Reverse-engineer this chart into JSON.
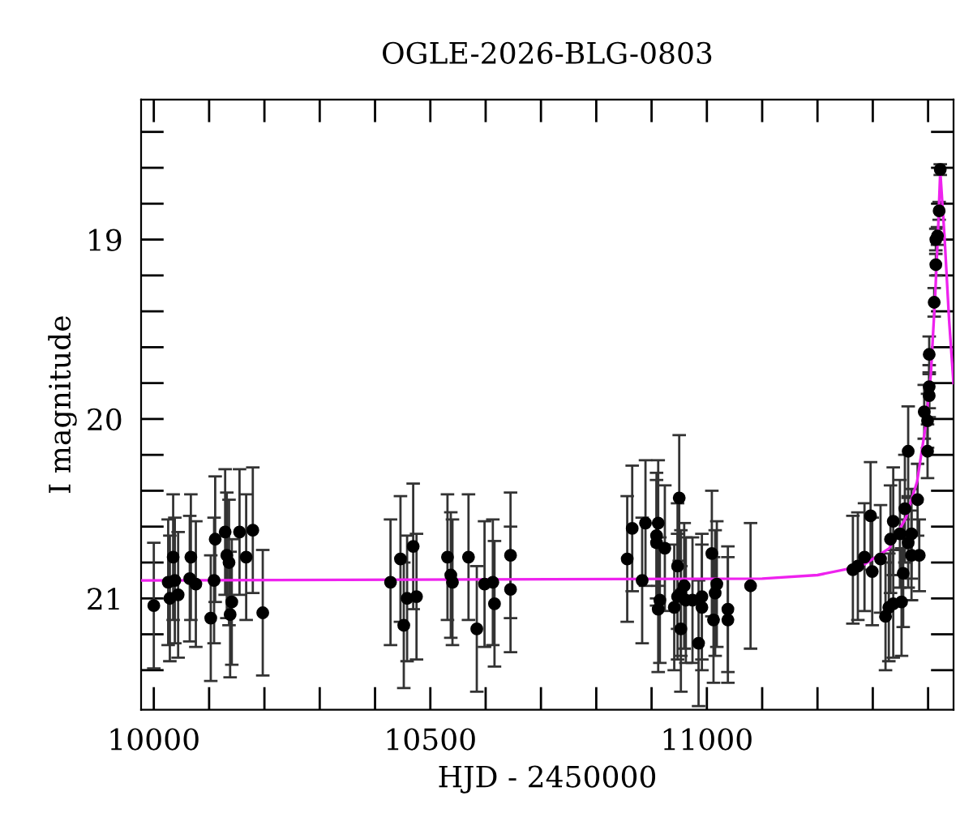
{
  "chart_data": {
    "type": "scatter",
    "title": "OGLE-2026-BLG-0803",
    "xlabel": "HJD - 2450000",
    "ylabel": "I magnitude",
    "xlim": [
      9977,
      11446
    ],
    "ylim": [
      21.62,
      18.22
    ],
    "xticks": [
      {
        "value": 10000,
        "label": "10000"
      },
      {
        "value": 10100,
        "label": null
      },
      {
        "value": 10200,
        "label": null
      },
      {
        "value": 10300,
        "label": null
      },
      {
        "value": 10400,
        "label": null
      },
      {
        "value": 10500,
        "label": "10500"
      },
      {
        "value": 10600,
        "label": null
      },
      {
        "value": 10700,
        "label": null
      },
      {
        "value": 10800,
        "label": null
      },
      {
        "value": 10900,
        "label": null
      },
      {
        "value": 11000,
        "label": "11000"
      },
      {
        "value": 11100,
        "label": null
      },
      {
        "value": 11200,
        "label": null
      },
      {
        "value": 11300,
        "label": null
      },
      {
        "value": 11400,
        "label": null
      }
    ],
    "yticks": [
      {
        "value": 18.4,
        "label": null
      },
      {
        "value": 18.6,
        "label": null
      },
      {
        "value": 18.8,
        "label": null
      },
      {
        "value": 19,
        "label": "19"
      },
      {
        "value": 19.2,
        "label": null
      },
      {
        "value": 19.4,
        "label": null
      },
      {
        "value": 19.6,
        "label": null
      },
      {
        "value": 19.8,
        "label": null
      },
      {
        "value": 20,
        "label": "20"
      },
      {
        "value": 20.2,
        "label": null
      },
      {
        "value": 20.4,
        "label": null
      },
      {
        "value": 20.6,
        "label": null
      },
      {
        "value": 20.8,
        "label": null
      },
      {
        "value": 21,
        "label": "21"
      },
      {
        "value": 21.2,
        "label": null
      },
      {
        "value": 21.4,
        "label": null
      }
    ],
    "grid": false,
    "legend": false,
    "series": [
      {
        "type": "line",
        "color": "#ee22ee",
        "marker": "none",
        "line_style": "solid",
        "x": [
          9977,
          11100,
          11200,
          11280,
          11330,
          11360,
          11380,
          11395,
          11405,
          11413,
          11418,
          11422,
          11430,
          11438,
          11446
        ],
        "values": [
          20.9,
          20.89,
          20.87,
          20.82,
          20.72,
          20.55,
          20.35,
          20.05,
          19.75,
          19.3,
          18.95,
          18.62,
          19.0,
          19.45,
          19.8
        ]
      },
      {
        "color": "#000000",
        "marker": "circle",
        "x": [
          10000,
          10026,
          10029,
          10035,
          10038,
          10044,
          10065,
          10067,
          10076,
          10103,
          10109,
          10111,
          10129,
          10132,
          10136,
          10138,
          10141,
          10155,
          10167,
          10179,
          10197,
          10428,
          10446,
          10452,
          10458,
          10469,
          10475,
          10531,
          10537,
          10540,
          10569,
          10584,
          10598,
          10613,
          10616,
          10645,
          10645,
          10856,
          10865,
          10883,
          10889,
          10909,
          10909,
          10912,
          10912,
          10915,
          10924,
          10941,
          10947,
          10947,
          10950,
          10953,
          10953,
          10959,
          10962,
          10974,
          10985,
          10991,
          10991,
          11009,
          11012,
          11015,
          11018,
          11038,
          11038,
          11079,
          11264,
          11273,
          11285,
          11296,
          11299,
          11314,
          11323,
          11329,
          11332,
          11337,
          11337,
          11349,
          11352,
          11355,
          11358,
          11364,
          11364,
          11370,
          11370,
          11381,
          11384,
          11393,
          11399,
          11399,
          11402,
          11402,
          11402,
          11411,
          11414,
          11414,
          11417,
          11420,
          11422
        ],
        "values": [
          21.04,
          20.91,
          21.0,
          20.77,
          20.9,
          20.98,
          20.89,
          20.77,
          20.92,
          21.11,
          20.9,
          20.67,
          20.63,
          20.76,
          20.8,
          21.09,
          21.02,
          20.63,
          20.77,
          20.62,
          21.08,
          20.91,
          20.78,
          21.15,
          21.0,
          20.71,
          20.99,
          20.77,
          20.87,
          20.91,
          20.77,
          21.17,
          20.92,
          20.91,
          21.03,
          20.95,
          20.76,
          20.78,
          20.61,
          20.9,
          20.58,
          20.65,
          20.69,
          20.58,
          21.06,
          21.01,
          20.72,
          21.05,
          20.82,
          20.99,
          20.44,
          20.97,
          21.17,
          20.93,
          21.01,
          21.01,
          21.25,
          20.99,
          21.05,
          20.75,
          21.12,
          20.97,
          20.92,
          21.06,
          21.12,
          20.93,
          20.84,
          20.82,
          20.77,
          20.54,
          20.85,
          20.78,
          21.1,
          21.05,
          20.67,
          21.03,
          20.57,
          20.64,
          21.02,
          20.86,
          20.5,
          20.69,
          20.18,
          20.76,
          20.64,
          20.45,
          20.76,
          19.96,
          20.18,
          20.01,
          19.87,
          19.82,
          19.64,
          19.35,
          19.14,
          19.0,
          18.98,
          18.84,
          18.61
        ],
        "errors": [
          0.35,
          0.35,
          0.35,
          0.35,
          0.35,
          0.35,
          0.35,
          0.35,
          0.35,
          0.35,
          0.35,
          0.35,
          0.35,
          0.35,
          0.35,
          0.35,
          0.35,
          0.35,
          0.35,
          0.35,
          0.35,
          0.35,
          0.35,
          0.35,
          0.35,
          0.35,
          0.35,
          0.35,
          0.35,
          0.35,
          0.35,
          0.35,
          0.35,
          0.35,
          0.35,
          0.35,
          0.35,
          0.35,
          0.35,
          0.35,
          0.35,
          0.35,
          0.35,
          0.35,
          0.35,
          0.35,
          0.35,
          0.35,
          0.35,
          0.35,
          0.35,
          0.35,
          0.35,
          0.35,
          0.35,
          0.35,
          0.35,
          0.35,
          0.35,
          0.35,
          0.35,
          0.35,
          0.35,
          0.35,
          0.35,
          0.35,
          0.3,
          0.3,
          0.3,
          0.3,
          0.3,
          0.3,
          0.3,
          0.3,
          0.3,
          0.3,
          0.3,
          0.3,
          0.3,
          0.3,
          0.3,
          0.25,
          0.25,
          0.25,
          0.25,
          0.2,
          0.2,
          0.15,
          0.15,
          0.15,
          0.12,
          0.12,
          0.1,
          0.08,
          0.06,
          0.06,
          0.05,
          0.05,
          0.03
        ]
      }
    ]
  }
}
